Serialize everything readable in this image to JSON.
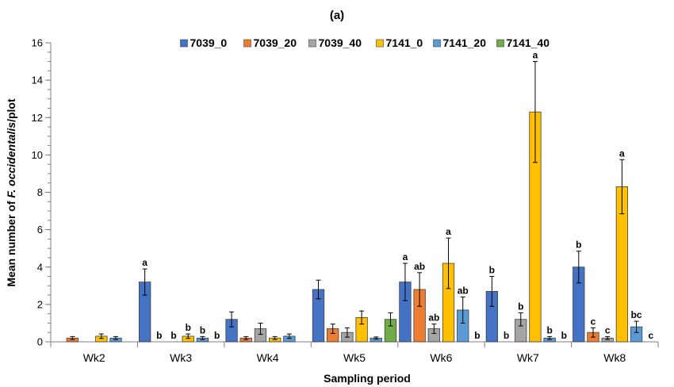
{
  "chart_data": {
    "type": "bar",
    "panel_label": "(a)",
    "xlabel": "Sampling period",
    "ylabel_prefix": "Mean number of ",
    "ylabel_species": "F. occidentalis",
    "ylabel_suffix": "/plot",
    "ylim": [
      0,
      16
    ],
    "yticks": [
      0,
      2,
      4,
      6,
      8,
      10,
      12,
      14,
      16
    ],
    "y_minor_step": 0.5,
    "grid": false,
    "legend_position": "top",
    "categories": [
      "Wk2",
      "Wk3",
      "Wk4",
      "Wk5",
      "Wk6",
      "Wk7",
      "Wk8"
    ],
    "series": [
      {
        "name": "7039_0",
        "color": "#4472C4",
        "values": [
          0,
          3.2,
          1.2,
          2.8,
          3.2,
          2.7,
          4.0
        ],
        "errors": [
          0,
          0.7,
          0.4,
          0.5,
          1.0,
          0.8,
          0.85
        ],
        "labels": [
          "",
          "a",
          "",
          "",
          "a",
          "b",
          "b"
        ]
      },
      {
        "name": "7039_20",
        "color": "#ED7D31",
        "values": [
          0.2,
          0,
          0.2,
          0.7,
          2.8,
          0,
          0.5
        ],
        "errors": [
          0.08,
          0,
          0.08,
          0.25,
          0.9,
          0,
          0.25
        ],
        "labels": [
          "",
          "b",
          "",
          "",
          "ab",
          "b",
          "c"
        ]
      },
      {
        "name": "7039_40",
        "color": "#A5A5A5",
        "values": [
          0,
          0,
          0.7,
          0.5,
          0.7,
          1.2,
          0.2
        ],
        "errors": [
          0,
          0,
          0.3,
          0.25,
          0.25,
          0.35,
          0.08
        ],
        "labels": [
          "",
          "b",
          "",
          "",
          "ab",
          "b",
          "c"
        ]
      },
      {
        "name": "7141_0",
        "color": "#FFC000",
        "values": [
          0.3,
          0.3,
          0.2,
          1.3,
          4.2,
          12.3,
          8.3
        ],
        "errors": [
          0.12,
          0.12,
          0.08,
          0.35,
          1.35,
          2.7,
          1.45
        ],
        "labels": [
          "",
          "b",
          "",
          "",
          "a",
          "a",
          "a"
        ]
      },
      {
        "name": "7141_20",
        "color": "#5B9BD5",
        "values": [
          0.2,
          0.2,
          0.3,
          0.2,
          1.7,
          0.2,
          0.8
        ],
        "errors": [
          0.08,
          0.08,
          0.12,
          0.06,
          0.7,
          0.08,
          0.3
        ],
        "labels": [
          "",
          "b",
          "",
          "",
          "ab",
          "b",
          "bc"
        ]
      },
      {
        "name": "7141_40",
        "color": "#70AD47",
        "values": [
          0,
          0,
          0,
          1.2,
          0,
          0,
          0
        ],
        "errors": [
          0,
          0,
          0,
          0.35,
          0,
          0,
          0
        ],
        "labels": [
          "",
          "b",
          "",
          "",
          "b",
          "b",
          "c"
        ]
      }
    ]
  }
}
